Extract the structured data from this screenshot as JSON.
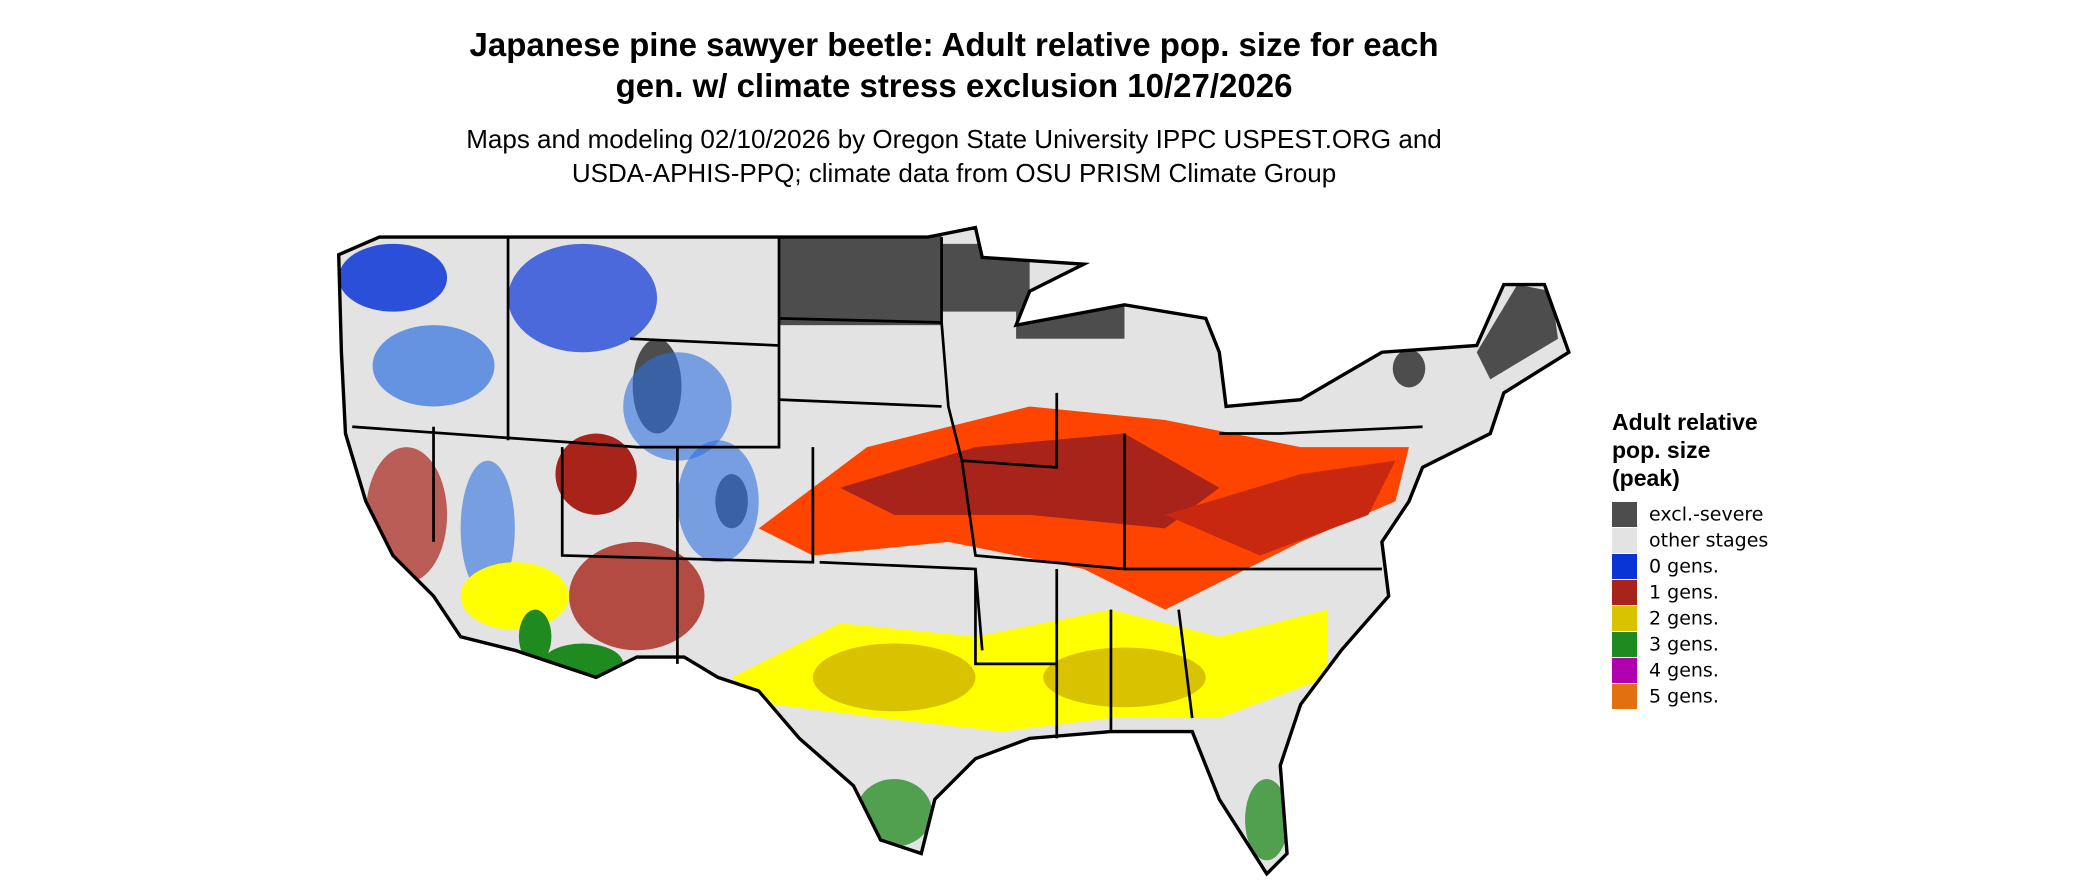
{
  "title": [
    "Japanese pine sawyer beetle: Adult relative pop. size for each",
    "gen. w/ climate stress exclusion 10/27/2026"
  ],
  "subtitle": [
    "Maps and modeling 02/10/2026 by Oregon State University IPPC USPEST.ORG and",
    "USDA-APHIS-PPQ; climate data from OSU PRISM Climate Group"
  ],
  "legend": {
    "title": [
      "Adult relative",
      "pop. size",
      "(peak)"
    ],
    "items": [
      {
        "label": "excl.-severe",
        "color": "#4d4d4d"
      },
      {
        "label": "other stages",
        "color": "#e3e3e3"
      },
      {
        "label": "0 gens.",
        "color": "#0a35d6"
      },
      {
        "label": "1 gens.",
        "color": "#a8241a"
      },
      {
        "label": "2 gens.",
        "color": "#d9c300"
      },
      {
        "label": "3 gens.",
        "color": "#1f8a1f"
      },
      {
        "label": "4 gens.",
        "color": "#b000b0"
      },
      {
        "label": "5 gens.",
        "color": "#e07010"
      }
    ]
  }
}
